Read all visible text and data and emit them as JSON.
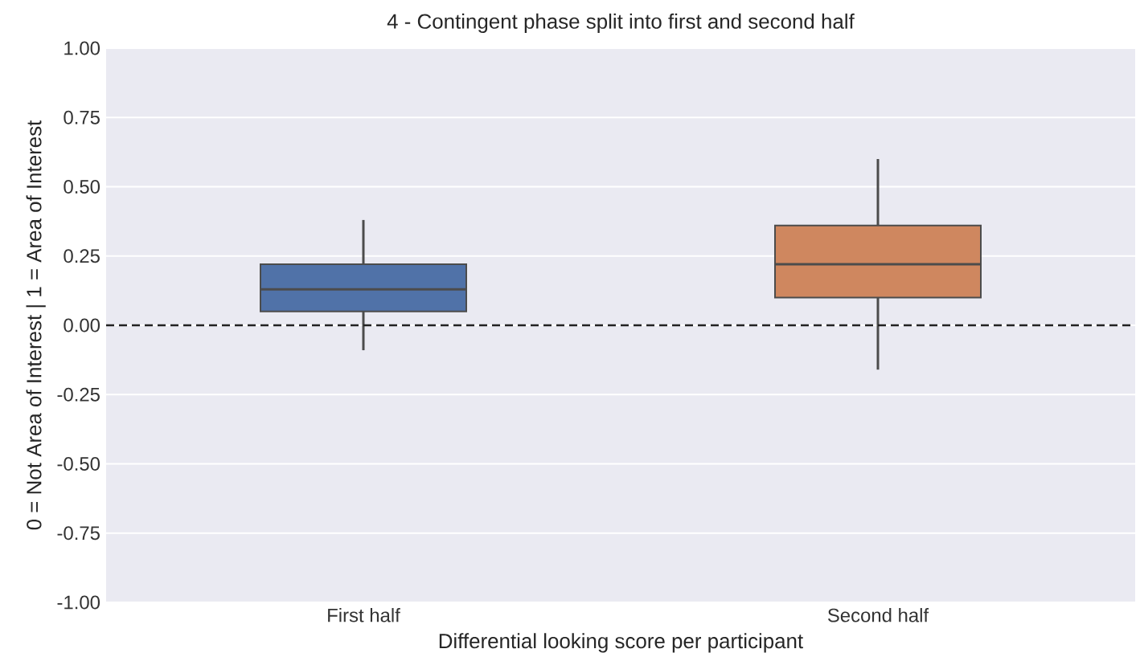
{
  "chart_data": {
    "type": "box",
    "title": "4 - Contingent phase split into first and second half",
    "xlabel": "Differential looking score per participant",
    "ylabel": "0 = Not Area of Interest | 1 = Area of Interest",
    "categories": [
      "First half",
      "Second half"
    ],
    "colors": [
      "#5072a8",
      "#cf875f"
    ],
    "boxes": [
      {
        "low": -0.09,
        "q1": 0.05,
        "median": 0.13,
        "q3": 0.22,
        "high": 0.38
      },
      {
        "low": -0.16,
        "q1": 0.1,
        "median": 0.22,
        "q3": 0.36,
        "high": 0.6
      }
    ],
    "ylim": [
      -1,
      1
    ],
    "yticks": [
      {
        "value": -1,
        "label": "-1.00"
      },
      {
        "value": -0.75,
        "label": "-0.75"
      },
      {
        "value": -0.5,
        "label": "-0.50"
      },
      {
        "value": -0.25,
        "label": "-0.25"
      },
      {
        "value": 0,
        "label": "0.00"
      },
      {
        "value": 0.25,
        "label": "0.25"
      },
      {
        "value": 0.5,
        "label": "0.50"
      },
      {
        "value": 0.75,
        "label": "0.75"
      },
      {
        "value": 1,
        "label": "1.00"
      }
    ],
    "grid": "y",
    "ref_lines": [
      {
        "axis": "y",
        "value": 0,
        "color": "#222222",
        "line_style": "dashed"
      }
    ]
  }
}
